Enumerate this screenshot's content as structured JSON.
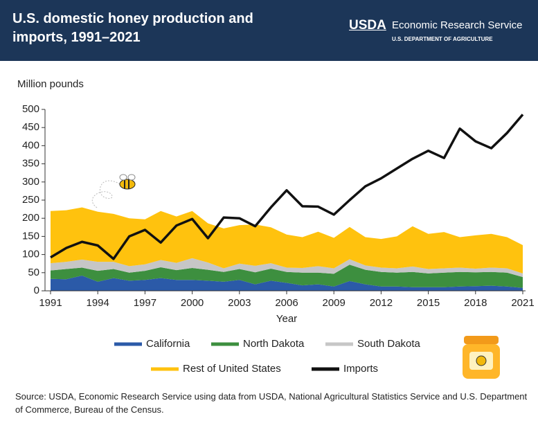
{
  "branding": {
    "agency": "USDA",
    "service": "Economic Research Service",
    "department": "U.S. DEPARTMENT OF AGRICULTURE"
  },
  "chart_data": {
    "type": "area",
    "stacked": true,
    "title": "U.S. domestic honey production and imports, 1991–2021",
    "y_label": "Million pounds",
    "x_label": "Year",
    "source": "Source: USDA, Economic Research Service using data from USDA, National Agricultural Statistics Service and U.S. Department of Commerce, Bureau of the Census.",
    "x": [
      1991,
      1992,
      1993,
      1994,
      1995,
      1996,
      1997,
      1998,
      1999,
      2000,
      2001,
      2002,
      2003,
      2004,
      2005,
      2006,
      2007,
      2008,
      2009,
      2010,
      2011,
      2012,
      2013,
      2014,
      2015,
      2016,
      2017,
      2018,
      2019,
      2020,
      2021
    ],
    "xlim": [
      1991,
      2021
    ],
    "xticks": [
      1991,
      1994,
      1997,
      2000,
      2003,
      2006,
      2009,
      2012,
      2015,
      2018,
      2021
    ],
    "ylim": [
      0,
      500
    ],
    "yticks": [
      0,
      50,
      100,
      150,
      200,
      250,
      300,
      350,
      400,
      450,
      500
    ],
    "series": [
      {
        "name": "California",
        "color": "#2b5aa8",
        "type": "area",
        "values": [
          33,
          32,
          42,
          25,
          35,
          28,
          30,
          35,
          30,
          30,
          28,
          25,
          30,
          18,
          28,
          22,
          15,
          18,
          12,
          27,
          18,
          12,
          12,
          10,
          10,
          10,
          12,
          13,
          14,
          12,
          8
        ]
      },
      {
        "name": "North Dakota",
        "color": "#3d8f3f",
        "type": "area",
        "values": [
          23,
          28,
          22,
          30,
          25,
          22,
          25,
          30,
          27,
          33,
          30,
          27,
          30,
          33,
          33,
          30,
          35,
          32,
          35,
          45,
          40,
          40,
          38,
          42,
          38,
          40,
          40,
          38,
          38,
          38,
          30
        ]
      },
      {
        "name": "South Dakota",
        "color": "#c6c6c6",
        "type": "area",
        "values": [
          20,
          20,
          22,
          25,
          20,
          18,
          18,
          20,
          20,
          27,
          20,
          10,
          15,
          18,
          15,
          12,
          13,
          18,
          15,
          15,
          12,
          12,
          12,
          15,
          12,
          12,
          12,
          10,
          12,
          12,
          10
        ]
      },
      {
        "name": "Rest of United States",
        "color": "#ffc20e",
        "type": "area",
        "values": [
          144,
          142,
          144,
          138,
          132,
          132,
          124,
          135,
          128,
          130,
          108,
          110,
          106,
          114,
          99,
          91,
          85,
          95,
          84,
          89,
          78,
          79,
          88,
          111,
          97,
          100,
          84,
          92,
          93,
          86,
          78
        ]
      },
      {
        "name": "Imports",
        "color": "#111111",
        "type": "line",
        "values": [
          92,
          118,
          135,
          125,
          88,
          150,
          168,
          133,
          180,
          198,
          145,
          202,
          200,
          178,
          230,
          277,
          233,
          232,
          210,
          250,
          288,
          310,
          337,
          364,
          386,
          366,
          447,
          412,
          393,
          435,
          486
        ]
      }
    ]
  }
}
